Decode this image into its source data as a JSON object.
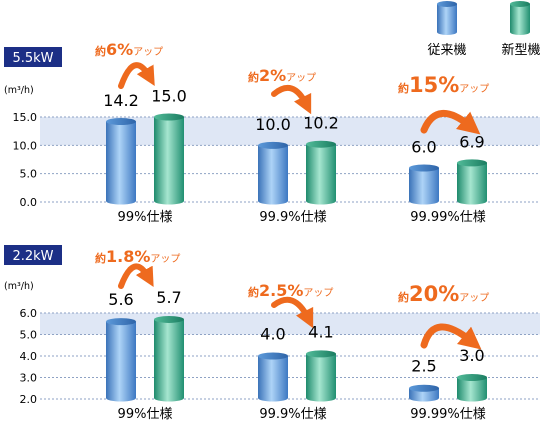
{
  "legend": [
    {
      "label": "従来機",
      "color": "#4a8fd8"
    },
    {
      "label": "新型機",
      "color": "#2fa585"
    }
  ],
  "colors": {
    "badge": "#1c2f86",
    "accent": "#ee6a1e",
    "band": "#dfe7f5"
  },
  "chart_data": [
    {
      "type": "bar",
      "title": "5.5kW",
      "ylabel": "(m³/h)",
      "ylim": [
        0,
        15
      ],
      "yticks": [
        "0.0",
        "5.0",
        "10.0",
        "15.0"
      ],
      "categories": [
        "99%仕様",
        "99.9%仕様",
        "99.99%仕様"
      ],
      "series": [
        {
          "name": "従来機",
          "values": [
            14.2,
            10.0,
            6.0
          ],
          "labels": [
            "14.2",
            "10.0",
            "6.0"
          ]
        },
        {
          "name": "新型機",
          "values": [
            15.0,
            10.2,
            6.9
          ],
          "labels": [
            "15.0",
            "10.2",
            "6.9"
          ]
        }
      ],
      "annotations": [
        {
          "prefix": "約",
          "value": "6%",
          "suffix": "アップ"
        },
        {
          "prefix": "約",
          "value": "2%",
          "suffix": "アップ"
        },
        {
          "prefix": "約",
          "value": "15%",
          "suffix": "アップ"
        }
      ]
    },
    {
      "type": "bar",
      "title": "2.2kW",
      "ylabel": "(m³/h)",
      "ylim": [
        2,
        6
      ],
      "yticks": [
        "2.0",
        "3.0",
        "4.0",
        "5.0",
        "6.0"
      ],
      "categories": [
        "99%仕様",
        "99.9%仕様",
        "99.99%仕様"
      ],
      "series": [
        {
          "name": "従来機",
          "values": [
            5.6,
            4.0,
            2.5
          ],
          "labels": [
            "5.6",
            "4.0",
            "2.5"
          ]
        },
        {
          "name": "新型機",
          "values": [
            5.7,
            4.1,
            3.0
          ],
          "labels": [
            "5.7",
            "4.1",
            "3.0"
          ]
        }
      ],
      "annotations": [
        {
          "prefix": "約",
          "value": "1.8%",
          "suffix": "アップ"
        },
        {
          "prefix": "約",
          "value": "2.5%",
          "suffix": "アップ"
        },
        {
          "prefix": "約",
          "value": "20%",
          "suffix": "アップ"
        }
      ]
    }
  ]
}
